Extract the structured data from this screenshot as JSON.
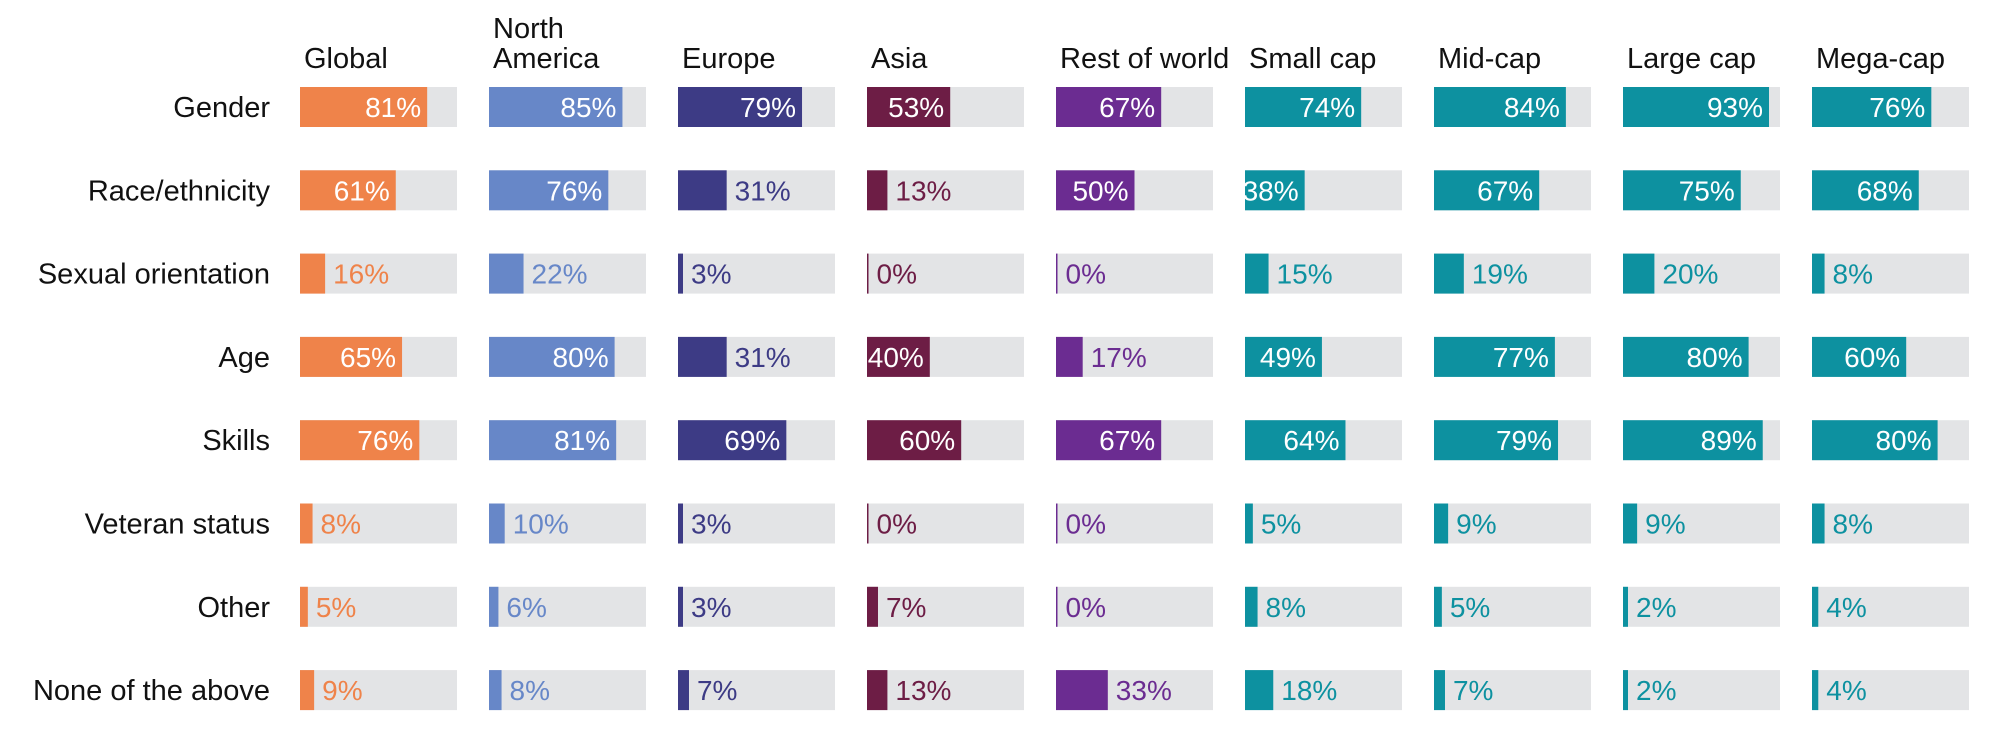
{
  "chart_data": {
    "type": "bar",
    "title": "",
    "xlabel": "",
    "ylabel": "",
    "xlim": [
      0,
      100
    ],
    "value_suffix": "%",
    "grid": false,
    "legend": "none",
    "columns": [
      {
        "name": [
          "Global"
        ],
        "color": "#ef834a"
      },
      {
        "name": [
          "North",
          "America"
        ],
        "color": "#6787c8"
      },
      {
        "name": [
          "Europe"
        ],
        "color": "#3d3b85"
      },
      {
        "name": [
          "Asia"
        ],
        "color": "#6d1d45"
      },
      {
        "name": [
          "Rest of world"
        ],
        "color": "#6b2c91"
      },
      {
        "name": [
          "Small cap"
        ],
        "color": "#0d91a0"
      },
      {
        "name": [
          "Mid-cap"
        ],
        "color": "#0d91a0"
      },
      {
        "name": [
          "Large cap"
        ],
        "color": "#0d91a0"
      },
      {
        "name": [
          "Mega-cap"
        ],
        "color": "#0d91a0"
      }
    ],
    "categories": [
      "Gender",
      "Race/ethnicity",
      "Sexual orientation",
      "Age",
      "Skills",
      "Veteran status",
      "Other",
      "None of the above"
    ],
    "values": [
      [
        81,
        85,
        79,
        53,
        67,
        74,
        84,
        93,
        76
      ],
      [
        61,
        76,
        31,
        13,
        50,
        38,
        67,
        75,
        68
      ],
      [
        16,
        22,
        3,
        0,
        0,
        15,
        19,
        20,
        8
      ],
      [
        65,
        80,
        31,
        40,
        17,
        49,
        77,
        80,
        60
      ],
      [
        76,
        81,
        69,
        60,
        67,
        64,
        79,
        89,
        80
      ],
      [
        8,
        10,
        3,
        0,
        0,
        5,
        9,
        9,
        8
      ],
      [
        5,
        6,
        3,
        7,
        0,
        8,
        5,
        2,
        4
      ],
      [
        9,
        8,
        7,
        13,
        33,
        18,
        7,
        2,
        4
      ]
    ],
    "colors": {
      "track": "#e3e4e6",
      "label_inside": "#ffffff"
    }
  }
}
